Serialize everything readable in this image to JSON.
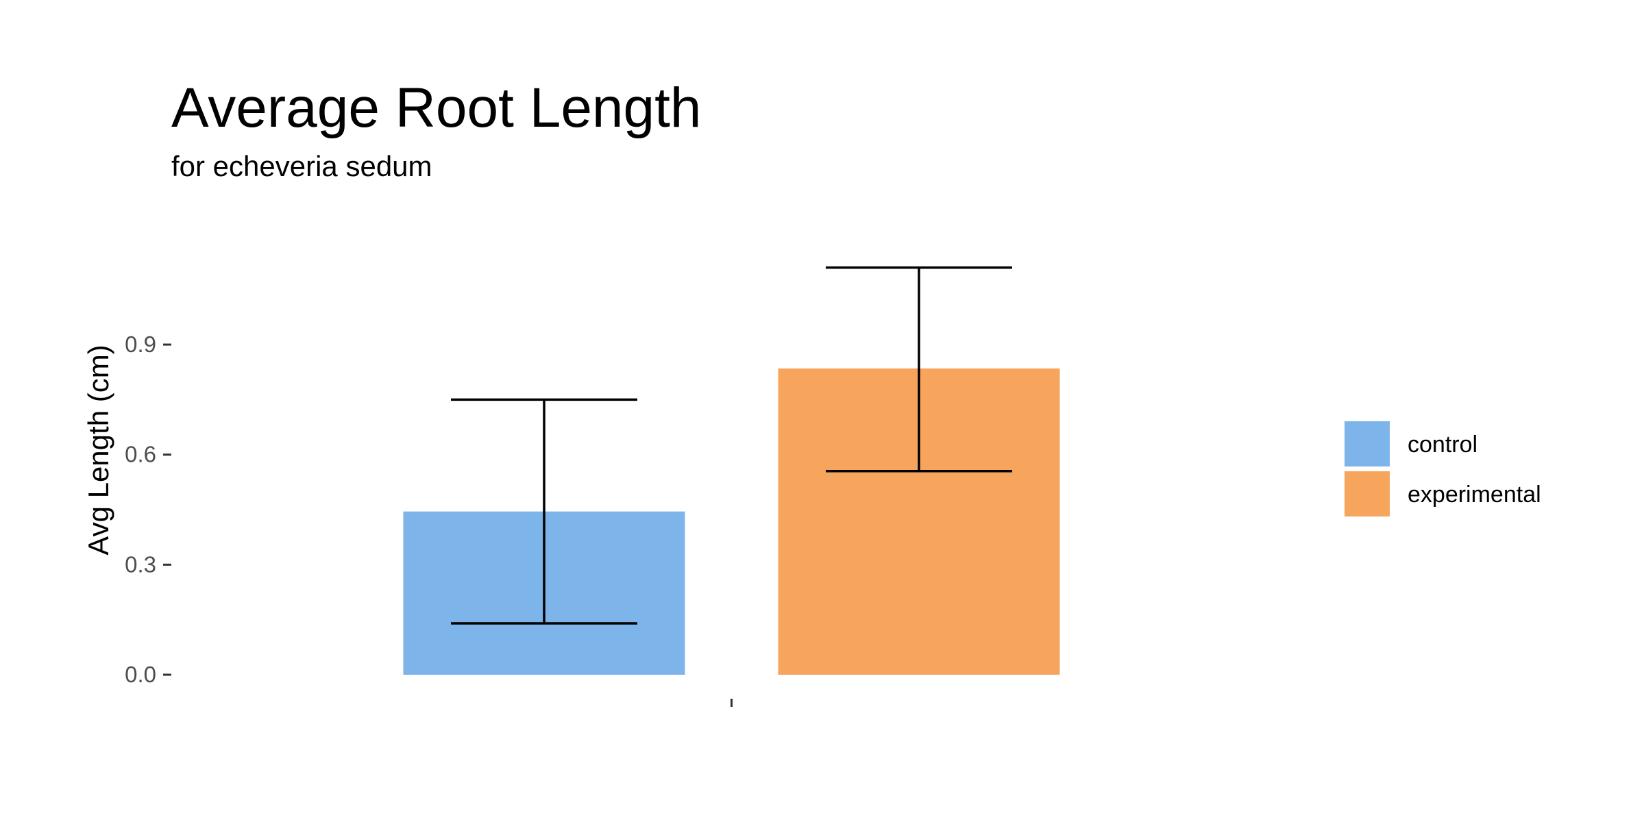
{
  "chart_data": {
    "type": "bar",
    "title": "Average Root Length",
    "subtitle": "for  echeveria sedum",
    "xlabel": "",
    "ylabel": "Avg Length (cm)",
    "ylim": [
      0,
      1.165
    ],
    "yticks": [
      0.0,
      0.3,
      0.6,
      0.9
    ],
    "ytick_labels": [
      "0.0",
      "0.3",
      "0.6",
      "0.9"
    ],
    "categories": [
      ""
    ],
    "grid": false,
    "legend": {
      "placement": "right",
      "entries": [
        {
          "label": "control",
          "color": "#7db4ea"
        },
        {
          "label": "experimental",
          "color": "#f7a55d"
        }
      ]
    },
    "series": [
      {
        "name": "control",
        "color": "#7db4ea",
        "values": [
          0.445
        ],
        "error_low": [
          0.14
        ],
        "error_high": [
          0.75
        ]
      },
      {
        "name": "experimental",
        "color": "#f7a55d",
        "values": [
          0.835
        ],
        "error_low": [
          0.555
        ],
        "error_high": [
          1.11
        ]
      }
    ]
  }
}
